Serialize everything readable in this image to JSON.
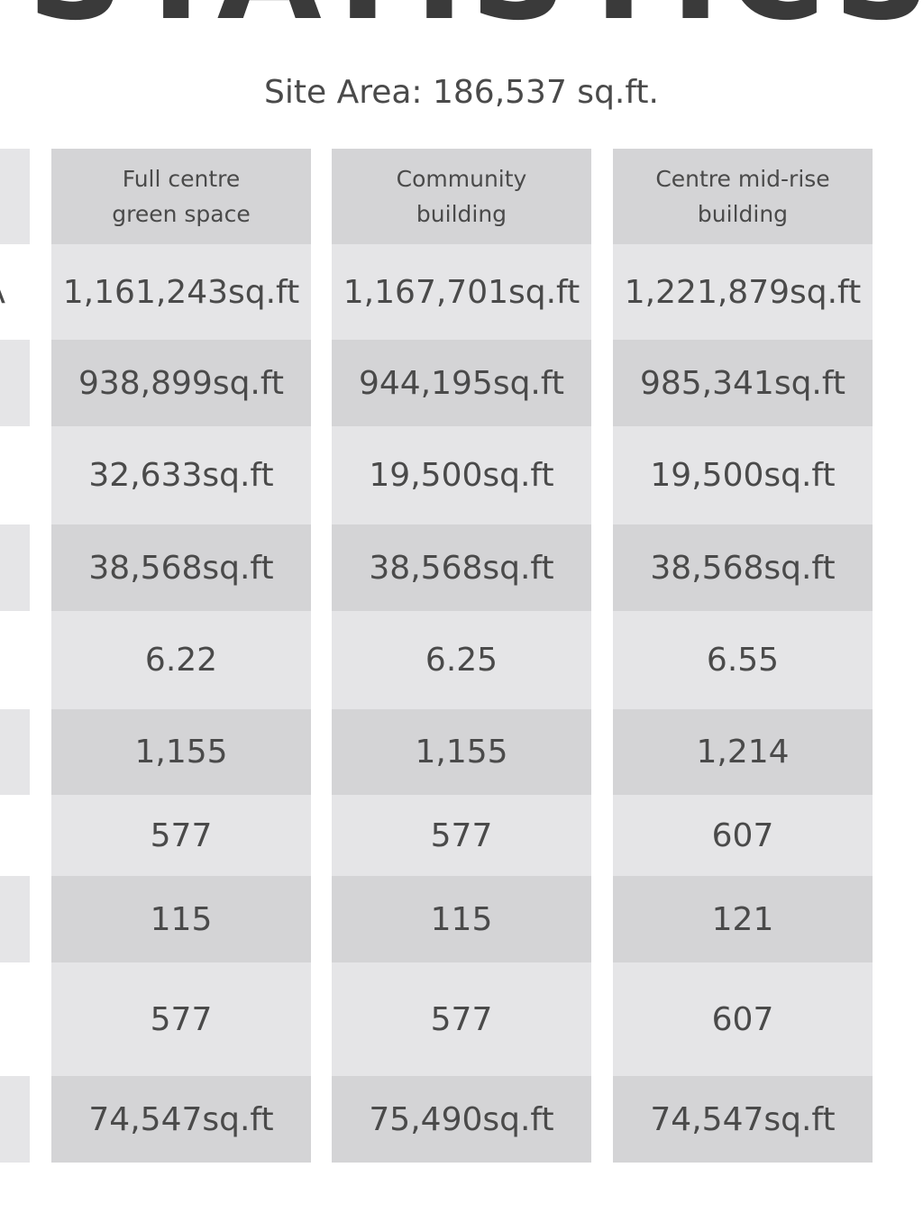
{
  "heading": "STATISTICS",
  "site_area": "Site Area: 186,537 sq.ft.",
  "table": {
    "columns": [
      "Full centre green space",
      "Community building",
      "Centre mid-rise building"
    ],
    "row_label_fragment": "A",
    "rows": [
      [
        "1,161,243sq.ft",
        "1,167,701sq.ft",
        "1,221,879sq.ft"
      ],
      [
        "938,899sq.ft",
        "944,195sq.ft",
        "985,341sq.ft"
      ],
      [
        "32,633sq.ft",
        "19,500sq.ft",
        "19,500sq.ft"
      ],
      [
        "38,568sq.ft",
        "38,568sq.ft",
        "38,568sq.ft"
      ],
      [
        "6.22",
        "6.25",
        "6.55"
      ],
      [
        "1,155",
        "1,155",
        "1,214"
      ],
      [
        "577",
        "577",
        "607"
      ],
      [
        "115",
        "115",
        "121"
      ],
      [
        "577",
        "577",
        "607"
      ],
      [
        "74,547sq.ft",
        "75,490sq.ft",
        "74,547sq.ft"
      ]
    ]
  }
}
